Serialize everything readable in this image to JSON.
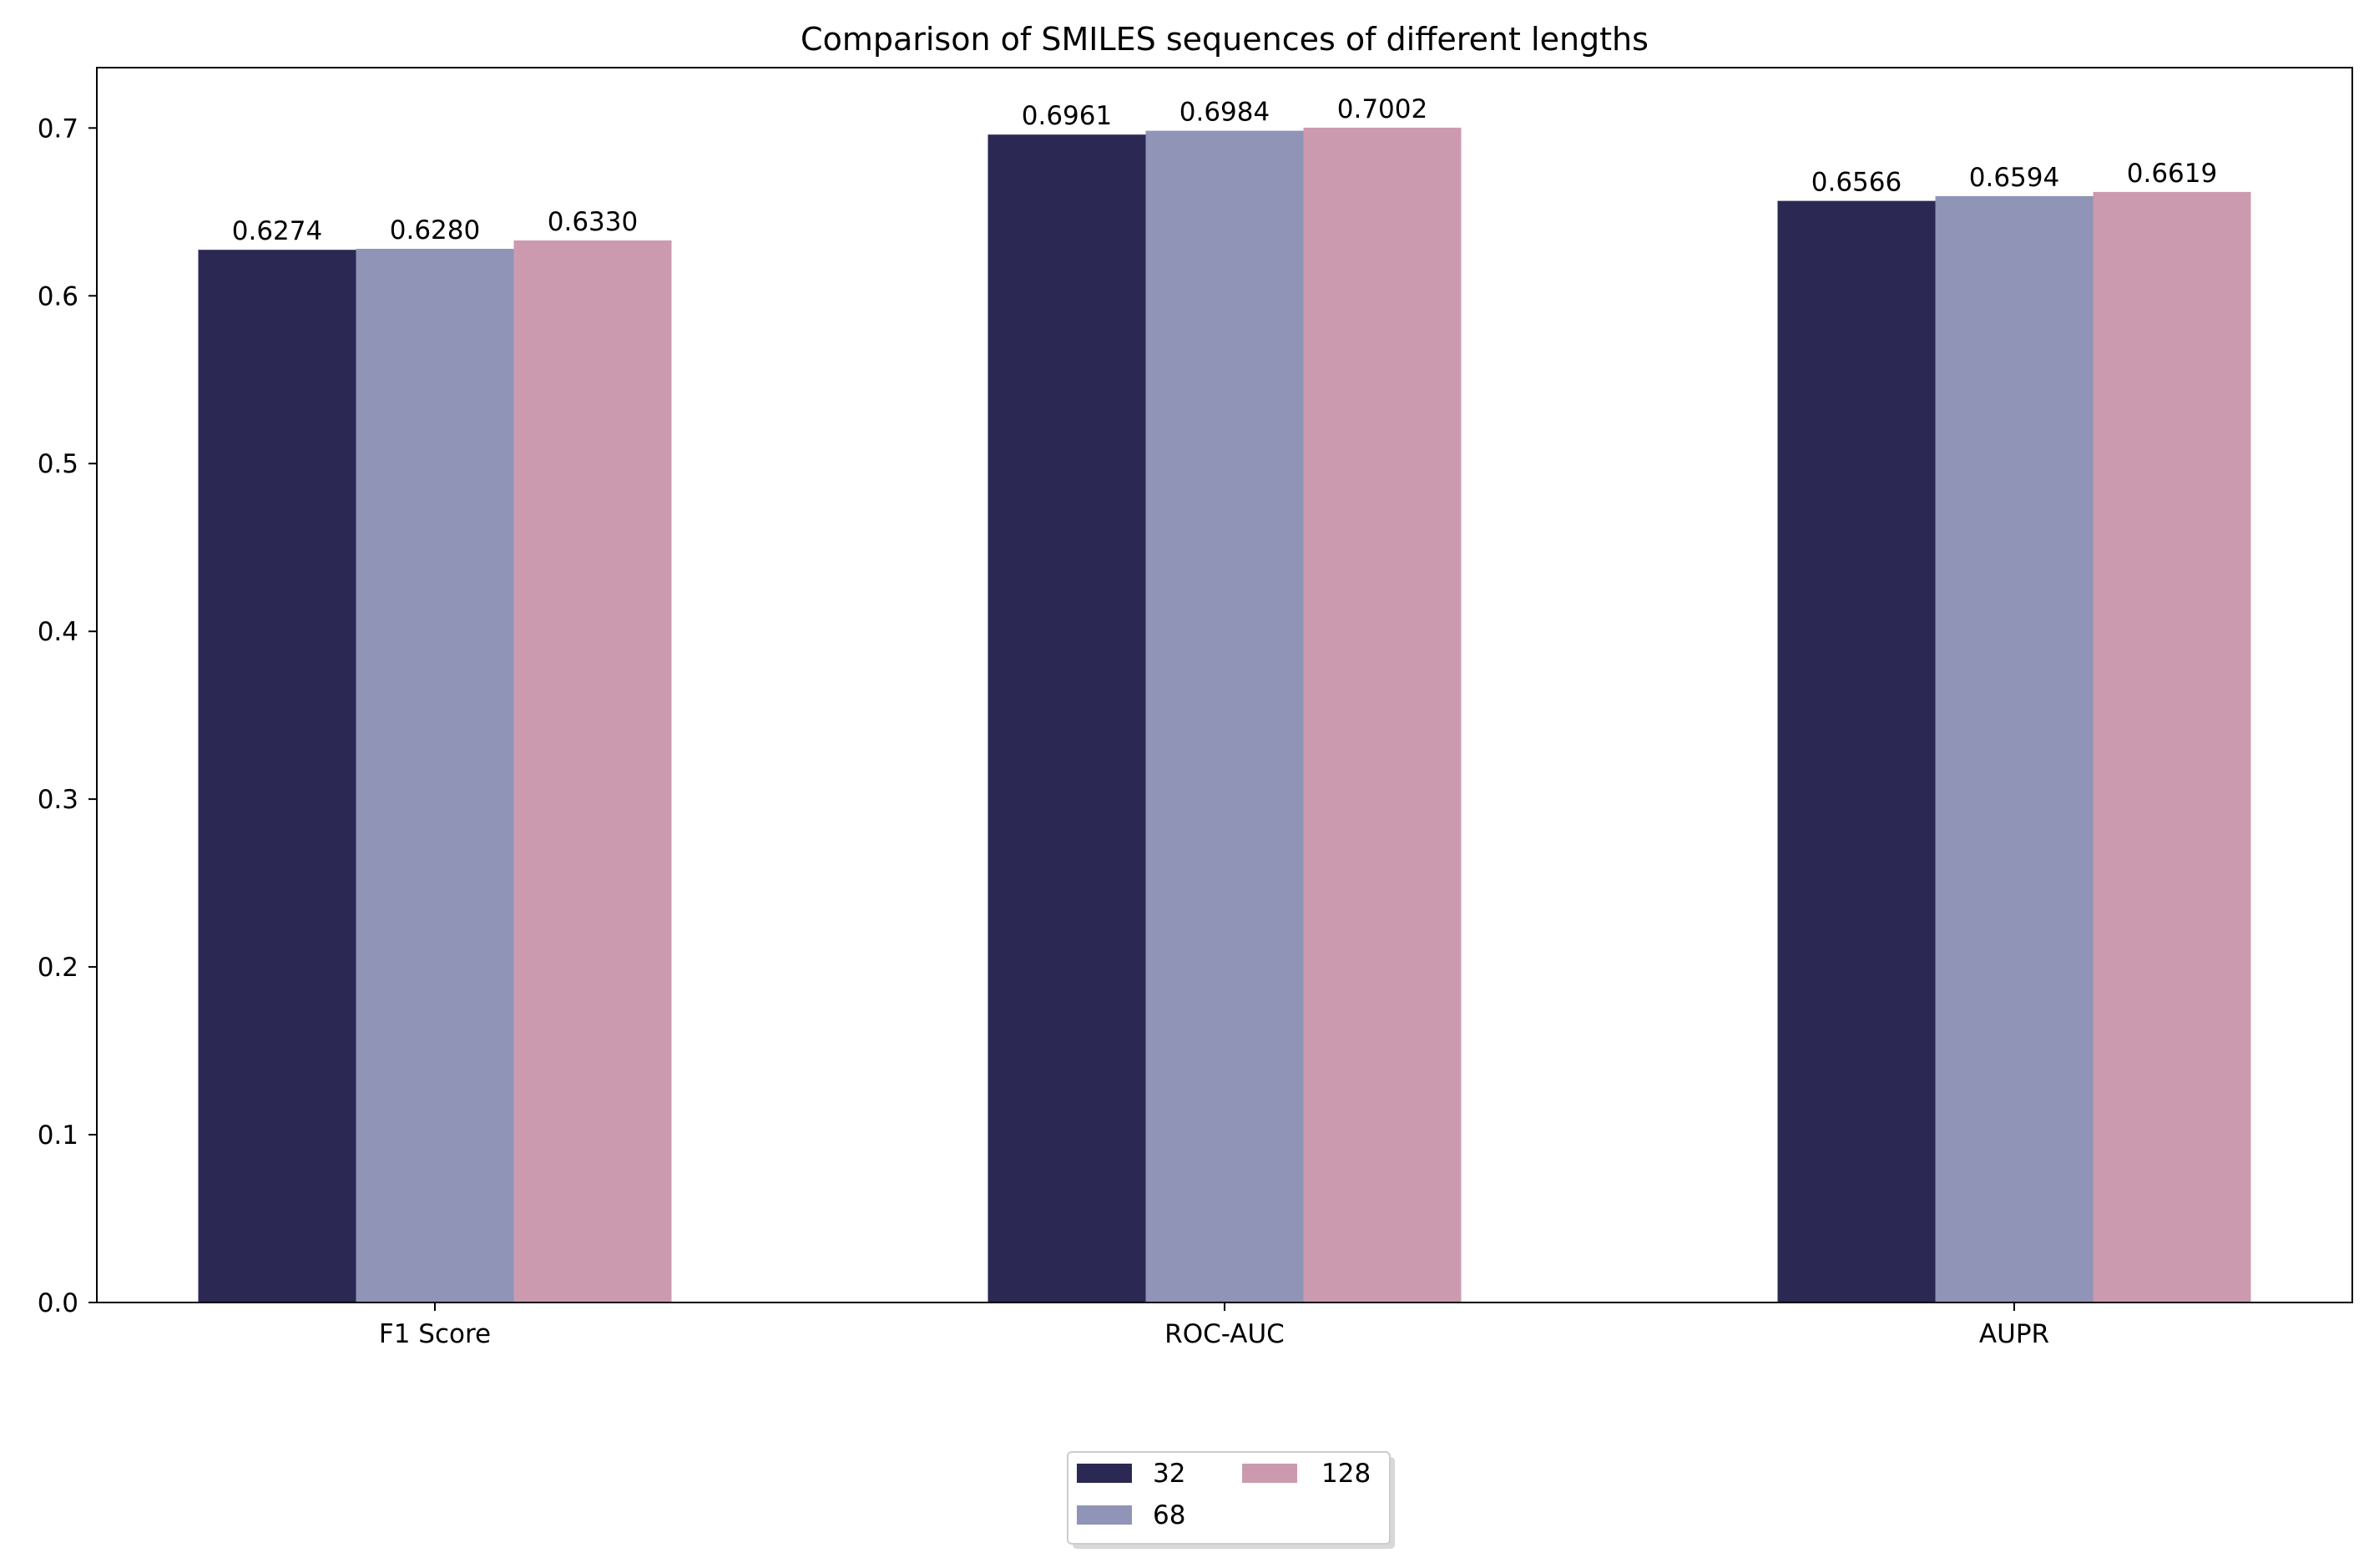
{
  "chart_data": {
    "type": "bar",
    "title": "Comparison of SMILES sequences of different lengths",
    "xlabel": "",
    "ylabel": "",
    "categories": [
      "F1 Score",
      "ROC-AUC",
      "AUPR"
    ],
    "series": [
      {
        "name": "32",
        "color": "#2b2854",
        "values": [
          0.6274,
          0.6961,
          0.6566
        ]
      },
      {
        "name": "68",
        "color": "#9094b6",
        "values": [
          0.628,
          0.6984,
          0.6594
        ]
      },
      {
        "name": "128",
        "color": "#cc9aae",
        "values": [
          0.633,
          0.7002,
          0.6619
        ]
      }
    ],
    "value_labels": [
      [
        "0.6274",
        "0.6961",
        "0.6566"
      ],
      [
        "0.6280",
        "0.6984",
        "0.6594"
      ],
      [
        "0.6330",
        "0.7002",
        "0.6619"
      ]
    ],
    "ylim": [
      0,
      0.736
    ],
    "yticks": [
      0.0,
      0.1,
      0.2,
      0.3,
      0.4,
      0.5,
      0.6,
      0.7
    ],
    "ytick_labels": [
      "0.0",
      "0.1",
      "0.2",
      "0.3",
      "0.4",
      "0.5",
      "0.6",
      "0.7"
    ],
    "grid": false,
    "legend": {
      "position": "below-center",
      "columns": 2
    }
  }
}
